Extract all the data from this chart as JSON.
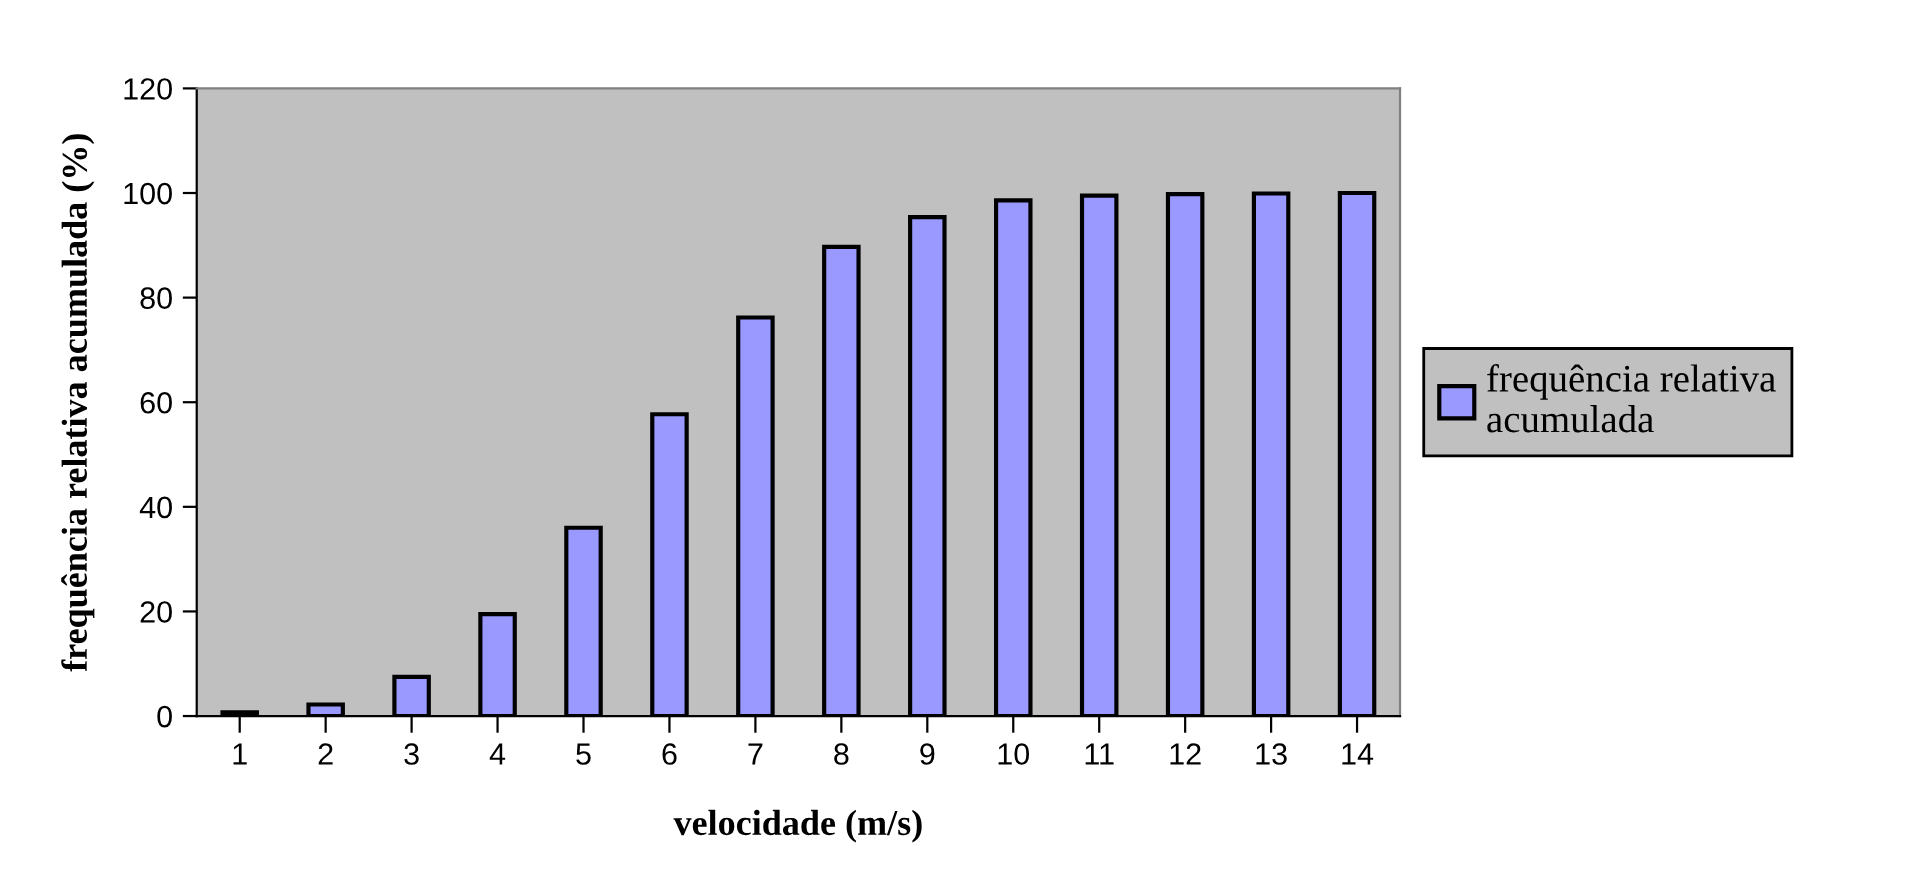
{
  "chart_data": {
    "type": "bar",
    "xlabel": "velocidade (m/s)",
    "ylabel": "frequência relativa acumulada (%)",
    "categories": [
      "1",
      "2",
      "3",
      "4",
      "5",
      "6",
      "7",
      "8",
      "9",
      "10",
      "11",
      "12",
      "13",
      "14"
    ],
    "series": [
      {
        "name": "frequência relativa acumulada",
        "color": "#9999ff",
        "values": [
          0.7,
          2.2,
          7.5,
          19.5,
          36,
          57.7,
          76.2,
          89.7,
          95.4,
          98.6,
          99.5,
          99.8,
          99.9,
          100
        ]
      }
    ],
    "ylim": [
      0,
      120
    ],
    "yticks": [
      0,
      20,
      40,
      60,
      80,
      100,
      120
    ],
    "grid": false,
    "legend": "right"
  }
}
